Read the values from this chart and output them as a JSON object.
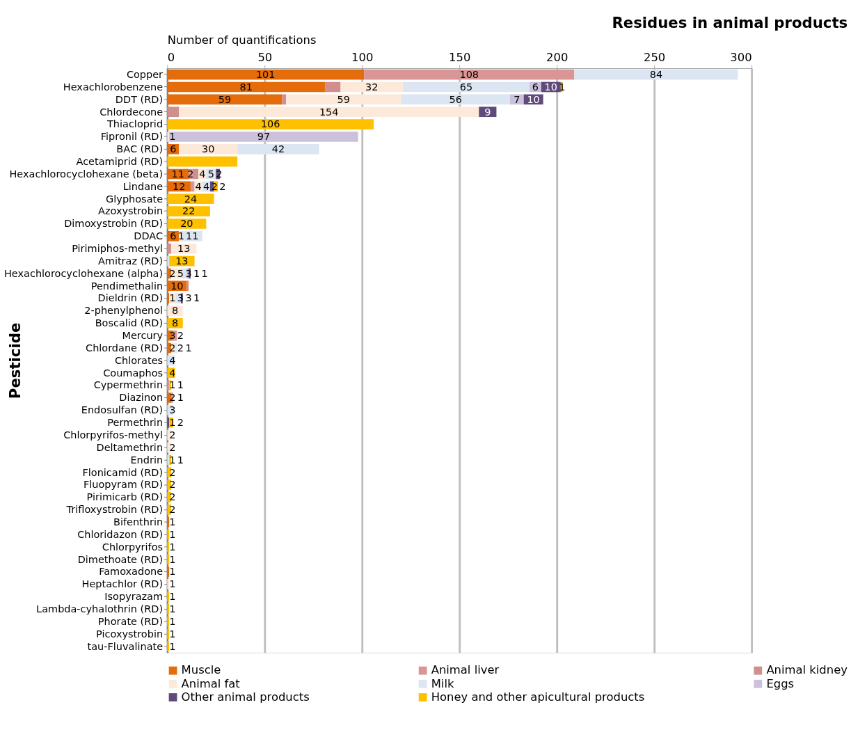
{
  "chart_data": {
    "type": "bar",
    "orientation": "horizontal",
    "stacked": true,
    "title": "Residues in animal products",
    "xlabel": "Number of quantifications",
    "ylabel": "Pesticide",
    "categories": [
      "Copper",
      "Hexachlorobenzene",
      "DDT (RD)",
      "Chlordecone",
      "Thiacloprid",
      "Fipronil (RD)",
      "BAC (RD)",
      "Acetamiprid (RD)",
      "Hexachlorocyclohexane (beta)",
      "Lindane",
      "Glyphosate",
      "Azoxystrobin",
      "Dimoxystrobin (RD)",
      "DDAC",
      "Pirimiphos-methyl",
      "Amitraz (RD)",
      "Hexachlorocyclohexane (alpha)",
      "Pendimethalin",
      "Dieldrin (RD)",
      "2-phenylphenol",
      "Boscalid (RD)",
      "Mercury",
      "Chlordane (RD)",
      "Chlorates",
      "Coumaphos",
      "Cypermethrin",
      "Diazinon",
      "Endosulfan (RD)",
      "Permethrin",
      "Chlorpyrifos-methyl",
      "Deltamethrin",
      "Endrin",
      "Flonicamid (RD)",
      "Fluopyram (RD)",
      "Pirimicarb (RD)",
      "Trifloxystrobin (RD)",
      "Bifenthrin",
      "Chloridazon (RD)",
      "Chlorpyrifos",
      "Dimethoate (RD)",
      "Famoxadone",
      "Heptachlor (RD)",
      "Isopyrazam",
      "Lambda-cyhalothrin (RD)",
      "Phorate (RD)",
      "Picoxystrobin",
      "tau-Fluvalinate"
    ],
    "series": [
      {
        "name": "Muscle",
        "color": "#e46c0a",
        "values": [
          101,
          81,
          59,
          null,
          null,
          null,
          6,
          null,
          11,
          12,
          null,
          null,
          null,
          6,
          null,
          null,
          2,
          10,
          1,
          null,
          null,
          3,
          2,
          null,
          null,
          null,
          2,
          null,
          null,
          null,
          null,
          null,
          null,
          null,
          null,
          null,
          1,
          null,
          null,
          null,
          1,
          null,
          null,
          null,
          null,
          null,
          null
        ],
        "value_labels": [
          "101",
          "81",
          "59",
          null,
          null,
          null,
          "6",
          null,
          "11",
          "12",
          null,
          null,
          null,
          "6",
          null,
          null,
          "2",
          "10",
          "1",
          null,
          null,
          "3",
          "2",
          null,
          null,
          null,
          "2",
          null,
          null,
          null,
          null,
          null,
          null,
          null,
          null,
          null,
          "1",
          null,
          null,
          null,
          "1",
          null,
          null,
          null,
          null,
          null,
          null
        ]
      },
      {
        "name": "Animal liver",
        "color": "#da9694",
        "values": [
          108,
          null,
          null,
          null,
          null,
          null,
          null,
          null,
          2,
          2,
          null,
          null,
          null,
          null,
          null,
          null,
          null,
          null,
          null,
          null,
          null,
          2,
          null,
          null,
          null,
          1,
          1,
          null,
          null,
          null,
          null,
          null,
          null,
          null,
          null,
          null,
          null,
          null,
          null,
          null,
          null,
          null,
          null,
          null,
          null,
          null,
          null
        ],
        "value_labels": [
          "108",
          null,
          null,
          null,
          null,
          null,
          null,
          null,
          "2",
          null,
          null,
          null,
          null,
          null,
          null,
          null,
          null,
          null,
          null,
          null,
          null,
          "2",
          null,
          null,
          null,
          "1",
          "1",
          null,
          null,
          null,
          null,
          null,
          null,
          null,
          null,
          null,
          null,
          null,
          null,
          null,
          null,
          null,
          null,
          null,
          null,
          null,
          null
        ]
      },
      {
        "name": "Animal kidney",
        "color": "#d08e8c",
        "values": [
          null,
          8,
          2,
          6,
          null,
          null,
          null,
          null,
          3,
          null,
          null,
          null,
          null,
          null,
          2,
          null,
          null,
          1,
          null,
          null,
          null,
          null,
          null,
          null,
          null,
          null,
          null,
          null,
          null,
          null,
          null,
          null,
          null,
          null,
          null,
          null,
          null,
          null,
          null,
          null,
          null,
          null,
          null,
          null,
          null,
          null,
          null
        ]
      },
      {
        "name": "Animal fat",
        "color": "#fde9d9",
        "values": [
          null,
          32,
          59,
          154,
          null,
          1,
          30,
          null,
          4,
          4,
          null,
          null,
          null,
          1,
          13,
          null,
          5,
          null,
          3,
          8,
          null,
          null,
          2,
          null,
          null,
          null,
          null,
          null,
          null,
          2,
          2,
          null,
          null,
          null,
          null,
          null,
          null,
          null,
          null,
          null,
          null,
          1,
          null,
          null,
          null,
          null,
          null
        ],
        "value_labels": [
          null,
          "32",
          "59",
          "154",
          null,
          "1",
          "30",
          null,
          "4",
          "4",
          null,
          null,
          null,
          "1",
          "13",
          null,
          "5",
          null,
          "3",
          "8",
          null,
          null,
          "2",
          null,
          null,
          null,
          null,
          null,
          null,
          "2",
          "2",
          null,
          null,
          null,
          null,
          null,
          null,
          null,
          null,
          null,
          null,
          "1",
          null,
          null,
          null,
          null,
          null
        ]
      },
      {
        "name": "Milk",
        "color": "#dce6f2",
        "values": [
          84,
          65,
          56,
          null,
          null,
          null,
          42,
          null,
          5,
          4,
          null,
          null,
          null,
          11,
          null,
          1,
          3,
          null,
          3,
          null,
          null,
          null,
          1,
          4,
          null,
          null,
          null,
          3,
          null,
          null,
          null,
          1,
          null,
          null,
          null,
          null,
          null,
          null,
          null,
          null,
          null,
          null,
          null,
          null,
          null,
          null,
          null
        ],
        "value_labels": [
          "84",
          "65",
          "56",
          null,
          null,
          null,
          "42",
          null,
          "5",
          "4",
          null,
          null,
          null,
          "11",
          null,
          null,
          "3",
          null,
          "3",
          null,
          null,
          null,
          "1",
          "4",
          null,
          null,
          null,
          "3",
          null,
          null,
          null,
          "1",
          null,
          null,
          null,
          null,
          null,
          null,
          null,
          null,
          null,
          null,
          null,
          null,
          null,
          null,
          null
        ]
      },
      {
        "name": "Eggs",
        "color": "#ccc1da",
        "values": [
          null,
          6,
          7,
          null,
          null,
          97,
          null,
          null,
          null,
          null,
          null,
          null,
          null,
          null,
          null,
          null,
          1,
          null,
          null,
          null,
          null,
          null,
          null,
          null,
          null,
          null,
          null,
          null,
          null,
          null,
          null,
          null,
          null,
          null,
          null,
          null,
          null,
          null,
          null,
          null,
          null,
          null,
          null,
          null,
          null,
          null,
          null
        ],
        "value_labels": [
          null,
          "6",
          "7",
          null,
          null,
          "97",
          null,
          null,
          null,
          null,
          null,
          null,
          null,
          null,
          null,
          null,
          "1",
          null,
          null,
          null,
          null,
          null,
          null,
          null,
          null,
          null,
          null,
          null,
          null,
          null,
          null,
          null,
          null,
          null,
          null,
          null,
          null,
          null,
          null,
          null,
          null,
          null,
          null,
          null,
          null,
          null,
          null
        ]
      },
      {
        "name": "Other animal products",
        "color": "#604a7b",
        "values": [
          null,
          10,
          10,
          9,
          null,
          null,
          null,
          null,
          2,
          2,
          null,
          null,
          null,
          null,
          null,
          null,
          1,
          null,
          1,
          null,
          null,
          null,
          null,
          null,
          null,
          null,
          null,
          null,
          1,
          null,
          null,
          null,
          null,
          null,
          null,
          null,
          null,
          null,
          null,
          null,
          null,
          null,
          null,
          null,
          null,
          null,
          null
        ],
        "value_labels": [
          null,
          "10",
          "10",
          "9",
          null,
          null,
          null,
          null,
          "2",
          "2",
          null,
          null,
          null,
          null,
          null,
          null,
          "1",
          null,
          "1",
          null,
          null,
          null,
          null,
          null,
          null,
          null,
          null,
          null,
          "1",
          null,
          null,
          null,
          null,
          null,
          null,
          null,
          null,
          null,
          null,
          null,
          null,
          null,
          null,
          null,
          null,
          null,
          null
        ]
      },
      {
        "name": "Honey and other apicultural products",
        "color": "#ffc000",
        "values": [
          null,
          1,
          null,
          null,
          106,
          null,
          null,
          36,
          null,
          2,
          24,
          22,
          20,
          null,
          null,
          13,
          null,
          null,
          null,
          null,
          8,
          null,
          null,
          null,
          4,
          1,
          null,
          null,
          2,
          null,
          null,
          1,
          2,
          2,
          2,
          2,
          null,
          1,
          1,
          1,
          null,
          null,
          1,
          1,
          1,
          1,
          1
        ],
        "value_labels": [
          null,
          "1",
          null,
          null,
          "106",
          null,
          null,
          null,
          null,
          "2",
          "24",
          "22",
          "20",
          null,
          null,
          "13",
          null,
          null,
          null,
          null,
          "8",
          null,
          null,
          null,
          "4",
          "1",
          null,
          null,
          "2",
          null,
          null,
          "1",
          "2",
          "2",
          "2",
          "2",
          null,
          "1",
          "1",
          "1",
          null,
          null,
          "1",
          "1",
          "1",
          "1",
          "1"
        ]
      }
    ],
    "xlim": [
      0,
      300
    ],
    "xticks": [
      0,
      50,
      100,
      150,
      200,
      250,
      300
    ],
    "grid": "x",
    "legend": "bottom"
  }
}
